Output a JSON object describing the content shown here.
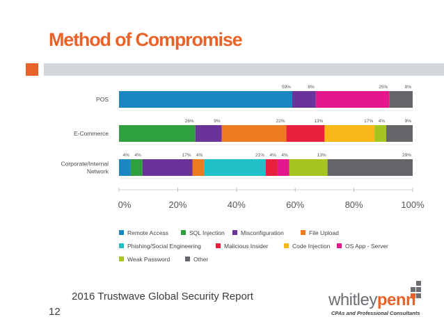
{
  "slide": {
    "title": "Method of Compromise",
    "source": "2016 Trustwave Global Security Report",
    "page_number": "12"
  },
  "logo": {
    "word_part1": "whitley",
    "word_part2": "penn",
    "tagline": "CPAs and Professional Consultants"
  },
  "colors": {
    "accent": "#e8632a",
    "accent_bar": "#d2d5d9"
  },
  "chart_data": {
    "type": "bar",
    "orientation": "horizontal",
    "stacked": true,
    "categories": [
      "POS",
      "E-Commerce",
      "Corporate/Internal\nNetwork"
    ],
    "xlim": [
      0,
      100
    ],
    "x_ticks": [
      "0%",
      "20%",
      "40%",
      "60%",
      "80%",
      "100%"
    ],
    "legend_position": "bottom",
    "series": [
      {
        "name": "Remote Access",
        "color": "#1a86c2",
        "values": [
          59,
          0,
          4
        ],
        "labels": [
          "59%",
          "",
          "4%"
        ]
      },
      {
        "name": "SQL Injection",
        "color": "#2ea03f",
        "values": [
          0,
          26,
          4
        ],
        "labels": [
          "",
          "26%",
          "4%"
        ]
      },
      {
        "name": "Misconfiguration",
        "color": "#6a3399",
        "values": [
          8,
          9,
          17
        ],
        "labels": [
          "8%",
          "9%",
          "17%"
        ]
      },
      {
        "name": "File Upload",
        "color": "#ee7b22",
        "values": [
          0,
          22,
          4
        ],
        "labels": [
          "",
          "22%",
          "4%"
        ]
      },
      {
        "name": "Phishing/Social Engineering",
        "color": "#23bfc9",
        "values": [
          0,
          0,
          21
        ],
        "labels": [
          "",
          "",
          "21%"
        ]
      },
      {
        "name": "Malicious Insider",
        "color": "#e8213f",
        "values": [
          0,
          13,
          4
        ],
        "labels": [
          "",
          "13%",
          "4%"
        ]
      },
      {
        "name": "Code Injection",
        "color": "#f7b918",
        "values": [
          0,
          17,
          0
        ],
        "labels": [
          "",
          "17%",
          ""
        ]
      },
      {
        "name": "OS App - Server",
        "color": "#e5178d",
        "values": [
          25,
          0,
          4
        ],
        "labels": [
          "25%",
          "",
          "4%"
        ]
      },
      {
        "name": "Weak Password",
        "color": "#a5c520",
        "values": [
          0,
          4,
          13
        ],
        "labels": [
          "",
          "4%",
          "13%"
        ]
      },
      {
        "name": "Other",
        "color": "#646669",
        "values": [
          8,
          9,
          29
        ],
        "labels": [
          "8%",
          "9%",
          "29%"
        ]
      }
    ]
  }
}
